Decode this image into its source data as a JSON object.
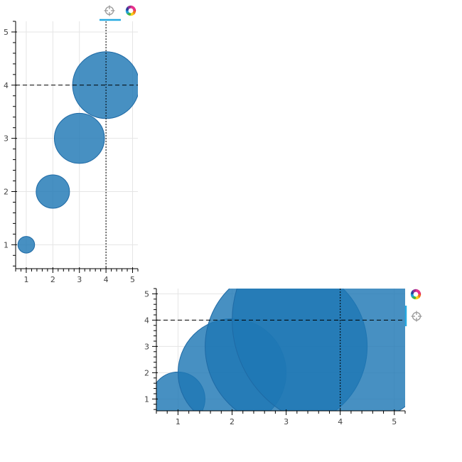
{
  "chart_data": [
    {
      "type": "scatter",
      "x": [
        1,
        2,
        3,
        4
      ],
      "y": [
        1,
        2,
        3,
        4
      ],
      "sizes": [
        0.25,
        0.5,
        0.75,
        1.0
      ],
      "xlim": [
        0.6,
        5.2
      ],
      "ylim": [
        0.55,
        5.2
      ],
      "x_ticks": [
        "1",
        "2",
        "3",
        "4",
        "5"
      ],
      "y_ticks": [
        "1",
        "2",
        "3",
        "4",
        "5"
      ],
      "title": "",
      "xlabel": "",
      "ylabel": "",
      "grid": true,
      "crosshair": {
        "x": 4,
        "y": 4
      },
      "toolbar_position": "above",
      "toolbar": [
        "crosshair-tool",
        "bokeh-logo"
      ],
      "color": "#1f77b4"
    },
    {
      "type": "scatter",
      "x": [
        1,
        2,
        3,
        4
      ],
      "y": [
        1,
        2,
        3,
        4
      ],
      "sizes": [
        0.25,
        0.5,
        0.75,
        1.0
      ],
      "xlim": [
        0.6,
        5.2
      ],
      "ylim": [
        0.55,
        5.2
      ],
      "x_ticks": [
        "1",
        "2",
        "3",
        "4",
        "5"
      ],
      "y_ticks": [
        "1",
        "2",
        "3",
        "4",
        "5"
      ],
      "title": "",
      "xlabel": "",
      "ylabel": "",
      "grid": true,
      "crosshair": {
        "x": 4,
        "y": 4
      },
      "toolbar_position": "right",
      "toolbar": [
        "bokeh-logo",
        "crosshair-tool"
      ],
      "color": "#1f77b4"
    }
  ]
}
